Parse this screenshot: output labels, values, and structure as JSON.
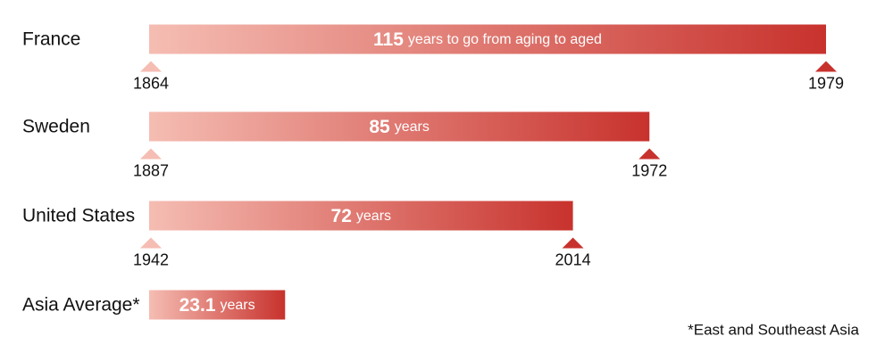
{
  "chart_data": {
    "type": "bar",
    "orientation": "horizontal",
    "categories": [
      "France",
      "Sweden",
      "United States",
      "Asia Average*"
    ],
    "values": [
      115,
      85,
      72,
      23.1
    ],
    "value_units": [
      "years to go from aging to aged",
      "years",
      "years",
      "years"
    ],
    "start_years": [
      1864,
      1887,
      1942,
      null
    ],
    "end_years": [
      1979,
      1972,
      2014,
      null
    ],
    "xlim": [
      0,
      115
    ],
    "color": [
      "#f5bdb3",
      "#c8322d"
    ],
    "footnote": "*East and Southeast Asia"
  }
}
